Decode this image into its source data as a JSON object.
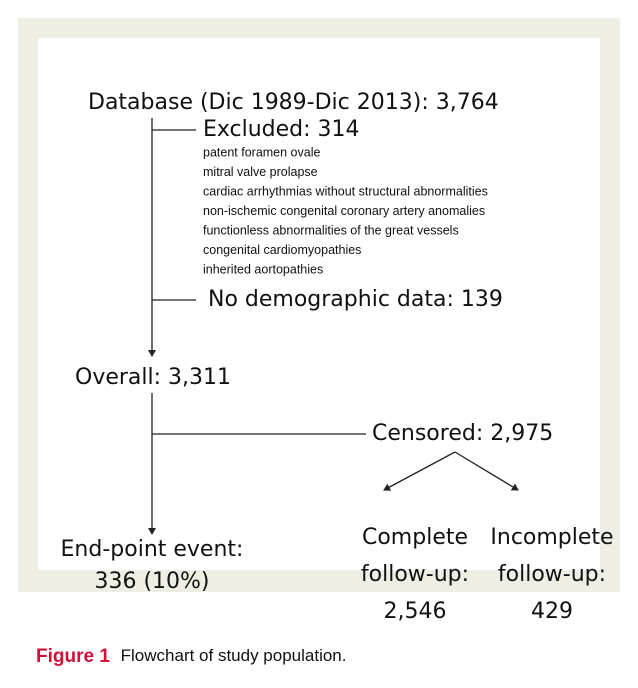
{
  "figure": {
    "nodes": [
      {
        "label": "Database (Dic 1989-Dic 2013): 3,764"
      },
      {
        "label": "Excluded: 314",
        "details": [
          "patent foramen ovale",
          "mitral valve prolapse",
          "cardiac arrhythmias without structural abnormalities",
          "non-ischemic congenital coronary artery anomalies",
          "functionless abnormalities of the great vessels",
          "congenital cardiomyopathies",
          "inherited aortopathies"
        ]
      },
      {
        "label": "No demographic data: 139"
      },
      {
        "label": "Overall: 3,311"
      },
      {
        "label": "Censored: 2,975"
      },
      {
        "lines": [
          "End-point event:",
          "336 (10%)"
        ]
      },
      {
        "lines": [
          "Complete",
          "follow-up:",
          "2,546"
        ]
      },
      {
        "lines": [
          "Incomplete",
          "follow-up:",
          "429"
        ]
      }
    ],
    "caption": {
      "label": "Figure 1",
      "text": "Flowchart of study population."
    }
  }
}
